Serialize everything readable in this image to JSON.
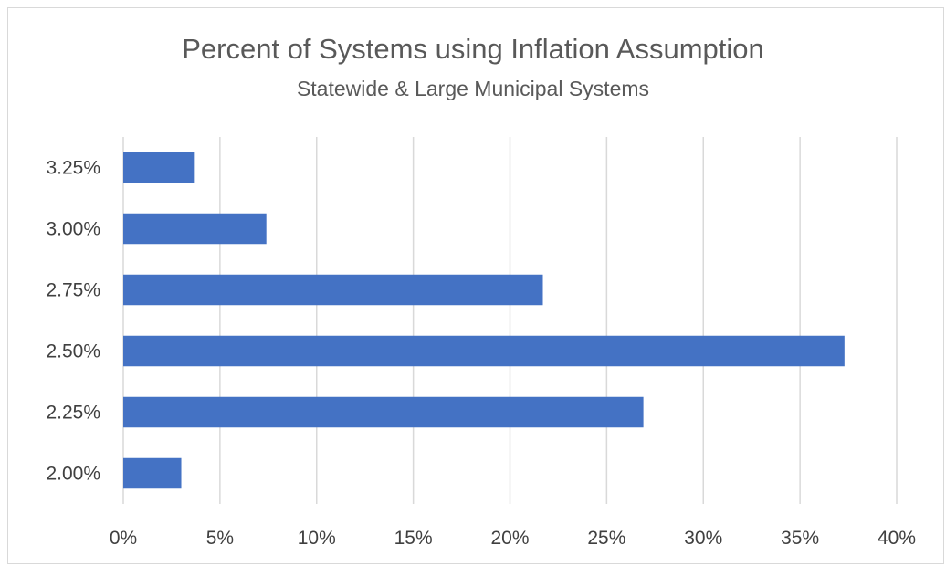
{
  "chart_data": {
    "type": "bar",
    "orientation": "horizontal",
    "title": "Percent of Systems using Inflation Assumption",
    "subtitle": "Statewide & Large Municipal Systems",
    "categories": [
      "3.25%",
      "3.00%",
      "2.75%",
      "2.50%",
      "2.25%",
      "2.00%"
    ],
    "values": [
      3.7,
      7.4,
      21.7,
      37.3,
      26.9,
      3.0
    ],
    "value_unit": "%",
    "xlim": [
      0,
      40
    ],
    "x_ticks": [
      0,
      5,
      10,
      15,
      20,
      25,
      30,
      35,
      40
    ],
    "x_tick_labels": [
      "0%",
      "5%",
      "10%",
      "15%",
      "20%",
      "25%",
      "30%",
      "35%",
      "40%"
    ],
    "grid": "vertical",
    "legend": "none",
    "bar_color": "#4472c4",
    "grid_color": "#d9d9d9"
  }
}
